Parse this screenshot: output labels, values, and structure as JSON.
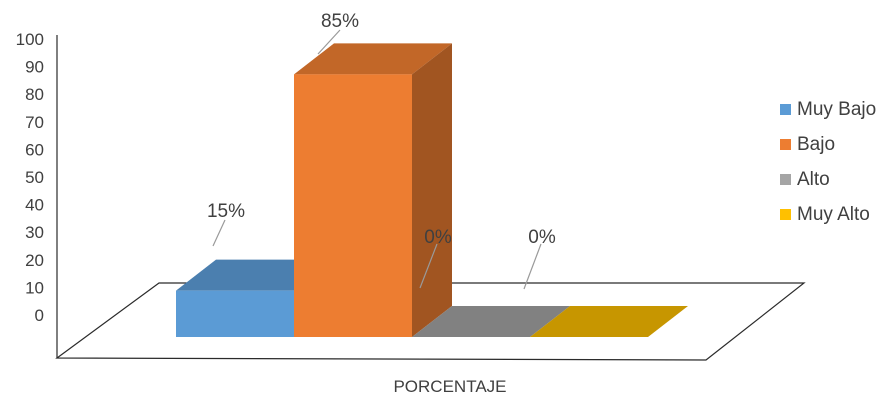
{
  "chart_data": {
    "type": "bar",
    "xlabel": "PORCENTAJE",
    "ylim": [
      0,
      100
    ],
    "y_ticks": [
      0,
      10,
      20,
      30,
      40,
      50,
      60,
      70,
      80,
      90,
      100
    ],
    "grid": false,
    "legend_position": "right",
    "series": [
      {
        "name": "Muy Bajo",
        "value": 15,
        "label": "15%",
        "color": "#5b9bd5"
      },
      {
        "name": "Bajo",
        "value": 85,
        "label": "85%",
        "color": "#ed7d31"
      },
      {
        "name": "Alto",
        "value": 0,
        "label": "0%",
        "color": "#a5a5a5"
      },
      {
        "name": "Muy Alto",
        "value": 0,
        "label": "0%",
        "color": "#ffc000"
      }
    ]
  }
}
